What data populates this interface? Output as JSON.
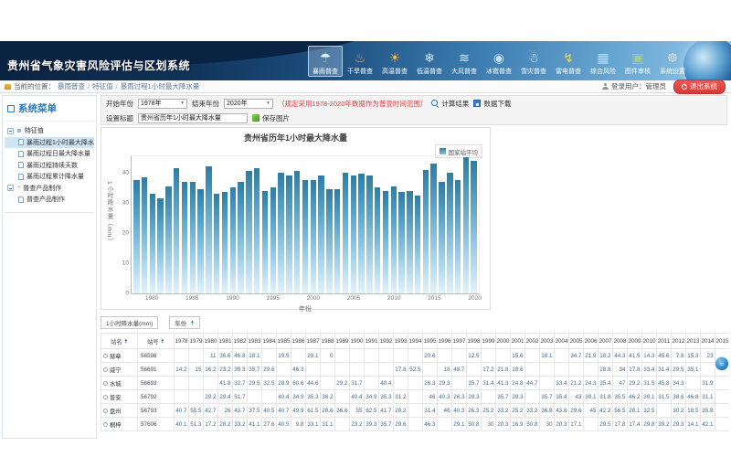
{
  "glyphs": {
    "caret": "▼",
    "sort_asc": "▲",
    "sort_desc": "▼",
    "float_widget": "≈"
  },
  "header": {
    "title": "贵州省气象灾害风险评估与区划系统",
    "nav_items": [
      {
        "label": "暴雨普查",
        "icon": "rainstorm-survey-icon",
        "glyph": "☂",
        "color": "#dceefb",
        "active": true
      },
      {
        "label": "干旱普查",
        "icon": "drought-survey-icon",
        "glyph": "♨",
        "color": "#ff9d2e",
        "active": false
      },
      {
        "label": "高温普查",
        "icon": "high-temp-survey-icon",
        "glyph": "☀",
        "color": "#ffb32e",
        "active": false
      },
      {
        "label": "低温普查",
        "icon": "low-temp-survey-icon",
        "glyph": "❄",
        "color": "#cfe9fb",
        "active": false
      },
      {
        "label": "大风普查",
        "icon": "wind-survey-icon",
        "glyph": "≋",
        "color": "#e6eef5",
        "active": false
      },
      {
        "label": "冰雹普查",
        "icon": "hail-survey-icon",
        "glyph": "◉",
        "color": "#bfe0f5",
        "active": false
      },
      {
        "label": "雪灾普查",
        "icon": "snow-survey-icon",
        "glyph": "☃",
        "color": "#eef6fc",
        "active": false
      },
      {
        "label": "雷电普查",
        "icon": "lightning-survey-icon",
        "glyph": "↯",
        "color": "#ffd92e",
        "active": false
      },
      {
        "label": "综合风险",
        "icon": "comprehensive-risk-icon",
        "glyph": "▦",
        "color": "#bcd9f0",
        "active": false
      },
      {
        "label": "图件审核",
        "icon": "map-review-icon",
        "glyph": "▣",
        "color": "#9fd08a",
        "active": false
      },
      {
        "label": "系统设置",
        "icon": "system-settings-icon",
        "glyph": "☸",
        "color": "#d8dde2",
        "active": false
      }
    ]
  },
  "breadcrumb": {
    "location_label": "当前的位置：",
    "items": [
      "暴雨普查",
      "特征值",
      "暴雨过程1小时最大降水量"
    ],
    "user_label": "登录用户：管理员",
    "logout_label": "退出系统"
  },
  "sidebar": {
    "title": "系统菜单",
    "groups": [
      {
        "label": "特征值",
        "glyph": "≣",
        "color": "#2d7bc0",
        "children": [
          "暴雨过程1小时最大降水量",
          "暴雨过程日最大降水量",
          "暴雨过程持续天数",
          "暴雨过程累计降水量"
        ],
        "selected_index": 0
      },
      {
        "label": "普查产品制作",
        "glyph": "◔",
        "color": "#e07b2a",
        "children": [
          "普查产品制作"
        ],
        "selected_index": -1
      }
    ]
  },
  "controls": {
    "start_year_label": "开始年份",
    "start_year_value": "1978年",
    "end_year_label": "结束年份",
    "end_year_value": "2020年",
    "range_note": "（规定采用1978-2020年数据作为普查时间范围）",
    "calc_button": "计算结果",
    "download_button": "数据下载",
    "title_label": "设置标题",
    "title_value": "贵州省历年1小时最大降水量",
    "save_image_button": "保存图片"
  },
  "chart_data": {
    "type": "bar",
    "title": "贵州省历年1小时最大降水量",
    "legend": [
      "国家站平均"
    ],
    "legend_position": "top-right",
    "xlabel": "年份",
    "ylabel": "1小时降水量（mm）",
    "ylim": [
      0,
      46
    ],
    "yticks": [
      0,
      10,
      20,
      30,
      40
    ],
    "xticks": [
      1980,
      1985,
      1990,
      1995,
      2000,
      2005,
      2010,
      2015,
      2020
    ],
    "grid": false,
    "bar_color_top": "#2e7da5",
    "bar_color_bottom": "#e2f2fa",
    "categories": [
      1978,
      1979,
      1980,
      1981,
      1982,
      1983,
      1984,
      1985,
      1986,
      1987,
      1988,
      1989,
      1990,
      1991,
      1992,
      1993,
      1994,
      1995,
      1996,
      1997,
      1998,
      1999,
      2000,
      2001,
      2002,
      2003,
      2004,
      2005,
      2006,
      2007,
      2008,
      2009,
      2010,
      2011,
      2012,
      2013,
      2014,
      2015,
      2016,
      2017,
      2018,
      2019,
      2020
    ],
    "values": [
      37.5,
      38.5,
      33,
      31.5,
      35.5,
      41.5,
      37,
      37,
      34.5,
      42,
      33,
      33.5,
      35,
      37,
      40.5,
      41.5,
      34,
      35,
      40,
      39,
      40.5,
      37.5,
      37.5,
      39,
      34.5,
      34.5,
      40,
      39,
      39.5,
      39,
      35,
      34,
      35.5,
      33.5,
      34,
      32.5,
      41,
      43,
      37,
      40,
      37.5,
      45,
      44
    ]
  },
  "table": {
    "filter_box_label": "1小时降水量(mm)",
    "year_sort_label": "年份",
    "name_header": "站名",
    "id_header": "站号",
    "year_columns": [
      "1978",
      "1979",
      "1980",
      "1981",
      "1982",
      "1983",
      "1984",
      "1985",
      "1986",
      "1987",
      "1988",
      "1989",
      "1990",
      "1991",
      "1992",
      "1993",
      "1994",
      "1995",
      "1996",
      "1997",
      "1998",
      "1999",
      "2000",
      "2001",
      "2002",
      "2003",
      "2004",
      "2005",
      "2006",
      "2007",
      "2008",
      "2009",
      "2010",
      "2011",
      "2012",
      "2013",
      "2014",
      "2015"
    ],
    "rows": [
      {
        "name": "赫章",
        "id": "56598",
        "values": [
          "",
          "",
          "11",
          "36.6",
          "46.8",
          "18.1",
          "",
          "19.5",
          "",
          "29.1",
          "0",
          "",
          "",
          "",
          "",
          "",
          "",
          "20.6",
          "",
          "",
          "12.5",
          "",
          "",
          "15.6",
          "",
          "18.1",
          "",
          "34.7",
          "21.9",
          "18.2",
          "44.3",
          "41.5",
          "14.3",
          "45.6",
          "7.8",
          "15.3",
          "23",
          ""
        ]
      },
      {
        "name": "威宁",
        "id": "56691",
        "values": [
          "14.2",
          "15",
          "16.2",
          "23.2",
          "39.3",
          "35.7",
          "29.6",
          "",
          "46.3",
          "",
          "",
          "",
          "",
          "",
          "",
          "17.8",
          "52.5",
          "",
          "18",
          "48.7",
          "",
          "17.2",
          "21.8",
          "18.6",
          "",
          "",
          "",
          "",
          "",
          "28.8",
          "34",
          "17.8",
          "33.4",
          "31.4",
          "29.5",
          "35.1",
          "",
          ""
        ]
      },
      {
        "name": "水城",
        "id": "56693",
        "values": [
          "",
          "",
          "",
          "41.8",
          "32.7",
          "29.5",
          "32.5",
          "28.9",
          "60.6",
          "44.6",
          "",
          "29.2",
          "31.7",
          "",
          "40.4",
          "",
          "",
          "26.3",
          "29.3",
          "",
          "35.7",
          "31.4",
          "41.3",
          "24.8",
          "44.7",
          "",
          "33.4",
          "21.2",
          "24.3",
          "35.4",
          "47",
          "29.2",
          "31.5",
          "45.8",
          "34.3",
          "",
          "31.9",
          ""
        ]
      },
      {
        "name": "普安",
        "id": "56792",
        "values": [
          "",
          "",
          "29.2",
          "29.4",
          "51.7",
          "",
          "",
          "40.4",
          "34.9",
          "35.3",
          "36.2",
          "",
          "40.4",
          "34.9",
          "35.3",
          "31.2",
          "",
          "46",
          "40.3",
          "26.3",
          "29.3",
          "",
          "35.7",
          "29.3",
          "",
          "35.7",
          "35.4",
          "43",
          "39.1",
          "31.8",
          "35.5",
          "46.2",
          "39.1",
          "31.5",
          "38.6",
          "46.8",
          "31.1",
          ""
        ]
      },
      {
        "name": "盘州",
        "id": "56793",
        "values": [
          "40.7",
          "55.5",
          "42.7",
          "26",
          "43.7",
          "37.5",
          "40.5",
          "40.7",
          "49.9",
          "61.5",
          "28.6",
          "36.6",
          "55",
          "62.5",
          "41.7",
          "28.2",
          "",
          "31.4",
          "46",
          "40.3",
          "26.3",
          "25.2",
          "33.2",
          "25.2",
          "33.2",
          "36.8",
          "43.6",
          "29.6",
          "45",
          "42.2",
          "56.5",
          "28.1",
          "32.5",
          "",
          "30.2",
          "18.5",
          "35.8",
          ""
        ]
      },
      {
        "name": "桐梓",
        "id": "57606",
        "values": [
          "40.1",
          "51.3",
          "17.2",
          "28.2",
          "33.2",
          "41.1",
          "27.6",
          "40.5",
          "9.8",
          "33.1",
          "31.1",
          "",
          "23.2",
          "39.3",
          "35.7",
          "29.6",
          "",
          "46.3",
          "",
          "29.1",
          "50.8",
          "30",
          "20.3",
          "16.9",
          "50.8",
          "30",
          "20.3",
          "17.1",
          "",
          "29.5",
          "17.8",
          "17.4",
          "29.8",
          "39.2",
          "29.3",
          "14.1",
          "42.1",
          ""
        ]
      }
    ]
  }
}
